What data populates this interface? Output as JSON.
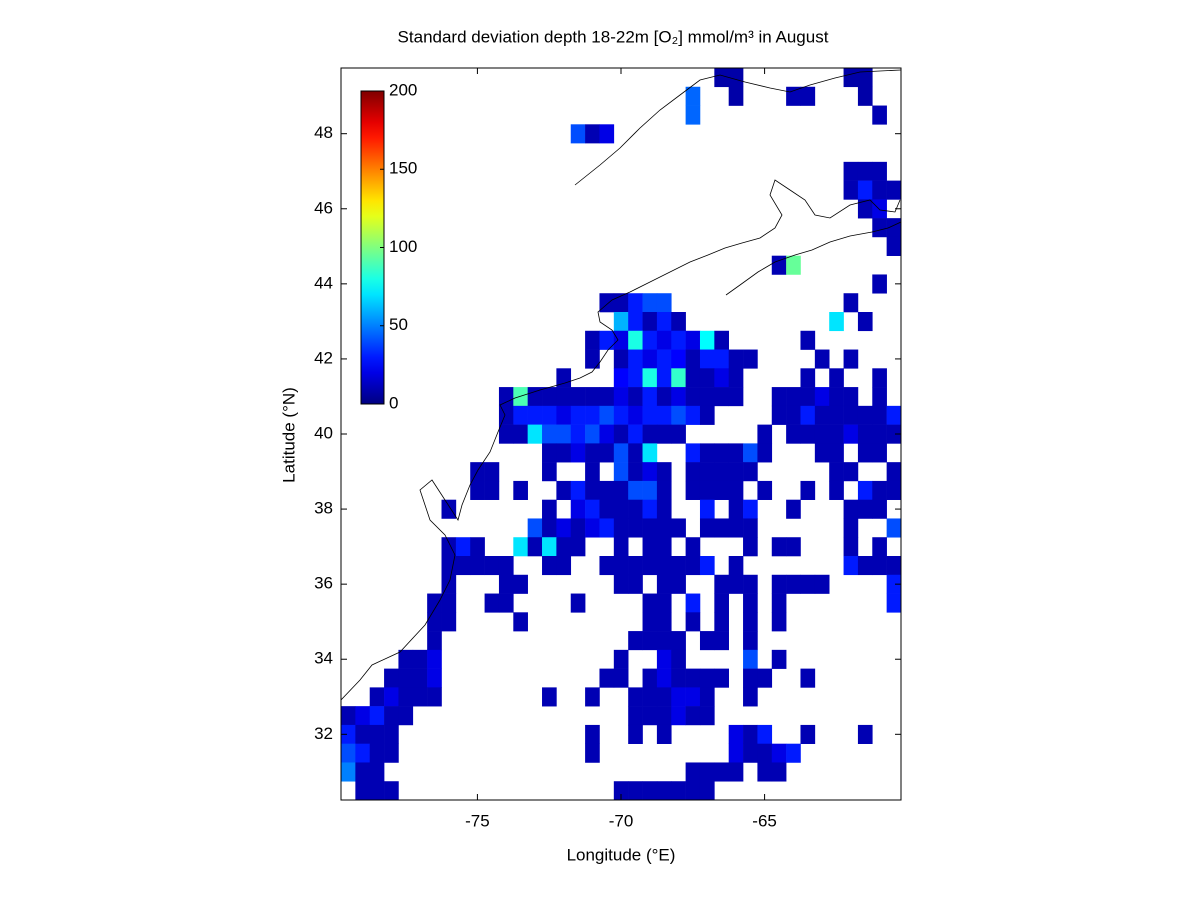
{
  "chart_data": {
    "type": "heatmap",
    "title": "Standard deviation depth 18-22m [O₂] mmol/m³ in August",
    "x_label": "Longitude (°E)",
    "y_label": "Latitude (°N)",
    "xlim": [
      -79.75,
      -60.25
    ],
    "ylim": [
      30.25,
      49.75
    ],
    "xticks": [
      -75,
      -70,
      -65
    ],
    "yticks": [
      32,
      34,
      36,
      38,
      40,
      42,
      44,
      46,
      48
    ],
    "colormap": "jet",
    "clim": [
      0,
      200
    ],
    "colorbar_ticks": [
      0,
      50,
      100,
      150,
      200
    ],
    "cell_width": 0.5,
    "cell_height": 0.5,
    "rows": [
      {
        "lat": 49.5,
        "lon": [
          -66.5,
          -66,
          -62,
          -61.5
        ],
        "values": [
          8,
          8,
          8,
          8
        ]
      },
      {
        "lat": 49,
        "lon": [
          -67.5,
          -66,
          -64,
          -63.5,
          -61.5
        ],
        "values": [
          45,
          8,
          10,
          10,
          8
        ]
      },
      {
        "lat": 48.5,
        "lon": [
          -67.5,
          -61
        ],
        "values": [
          45,
          10
        ]
      },
      {
        "lat": 48,
        "lon": [
          -71.5,
          -71,
          -70.5
        ],
        "values": [
          40,
          10,
          20
        ]
      },
      {
        "lat": 47,
        "lon": [
          -62,
          -61.5,
          -61
        ],
        "values": [
          10,
          10,
          10
        ]
      },
      {
        "lat": 46.5,
        "lon": [
          -62,
          -61.5,
          -61,
          -60.5
        ],
        "values": [
          10,
          30,
          10,
          10
        ]
      },
      {
        "lat": 46,
        "lon": [
          -61.5,
          -61
        ],
        "values": [
          10,
          20
        ]
      },
      {
        "lat": 45.5,
        "lon": [
          -61,
          -60.5
        ],
        "values": [
          10,
          10
        ]
      },
      {
        "lat": 45,
        "lon": [
          -60.5
        ],
        "values": [
          10
        ]
      },
      {
        "lat": 44.5,
        "lon": [
          -64.5,
          -64
        ],
        "values": [
          10,
          95
        ]
      },
      {
        "lat": 44,
        "lon": [
          -61
        ],
        "values": [
          10
        ]
      },
      {
        "lat": 43.5,
        "lon": [
          -70.5,
          -70,
          -69.5,
          -69,
          -68.5,
          -62
        ],
        "values": [
          10,
          10,
          30,
          40,
          40,
          10
        ]
      },
      {
        "lat": 43,
        "lon": [
          -70,
          -69.5,
          -69,
          -68.5,
          -68,
          -62.5,
          -61.5
        ],
        "values": [
          60,
          30,
          10,
          30,
          10,
          70,
          10
        ]
      },
      {
        "lat": 42.5,
        "lon": [
          -71,
          -70.5,
          -70,
          -69.5,
          -69,
          -68.5,
          -68,
          -67.5,
          -67,
          -66.5,
          -63.5
        ],
        "values": [
          10,
          30,
          20,
          80,
          30,
          20,
          30,
          20,
          75,
          10,
          10
        ]
      },
      {
        "lat": 42,
        "lon": [
          -71,
          -70,
          -69.5,
          -69,
          -68.5,
          -68,
          -67.5,
          -67,
          -66.5,
          -66,
          -65.5,
          -63,
          -62
        ],
        "values": [
          10,
          10,
          30,
          20,
          30,
          25,
          10,
          30,
          30,
          10,
          10,
          10,
          10
        ]
      },
      {
        "lat": 41.5,
        "lon": [
          -72,
          -70,
          -69.5,
          -69,
          -68.5,
          -68,
          -67.5,
          -67,
          -66.5,
          -66,
          -63.5,
          -62.5,
          -61
        ],
        "values": [
          10,
          25,
          30,
          80,
          30,
          85,
          10,
          10,
          20,
          10,
          10,
          10,
          10
        ]
      },
      {
        "lat": 41,
        "lon": [
          -74,
          -73.5,
          -73,
          -72.5,
          -72,
          -71.5,
          -71,
          -70.5,
          -70,
          -69.5,
          -69,
          -68.5,
          -68,
          -67.5,
          -67,
          -66.5,
          -66,
          -64.5,
          -64,
          -63.5,
          -63,
          -62.5,
          -62,
          -61
        ],
        "values": [
          10,
          90,
          10,
          10,
          10,
          10,
          10,
          10,
          20,
          10,
          30,
          10,
          20,
          10,
          10,
          10,
          10,
          10,
          10,
          10,
          20,
          10,
          10,
          10
        ]
      },
      {
        "lat": 40.5,
        "lon": [
          -74,
          -73.5,
          -73,
          -72.5,
          -72,
          -71.5,
          -71,
          -70.5,
          -70,
          -69.5,
          -69,
          -68.5,
          -68,
          -67.5,
          -67,
          -64.5,
          -64,
          -63.5,
          -63,
          -62.5,
          -62,
          -61.5,
          -61,
          -60.5
        ],
        "values": [
          10,
          30,
          30,
          30,
          20,
          30,
          30,
          40,
          30,
          20,
          30,
          30,
          40,
          30,
          10,
          10,
          10,
          30,
          10,
          10,
          10,
          10,
          10,
          30
        ]
      },
      {
        "lat": 40,
        "lon": [
          -74,
          -73.5,
          -73,
          -72.5,
          -72,
          -71.5,
          -71,
          -70.5,
          -70,
          -69.5,
          -69,
          -68.5,
          -68,
          -65,
          -64,
          -63.5,
          -63,
          -62.5,
          -62,
          -61.5,
          -61,
          -60.5
        ],
        "values": [
          10,
          10,
          70,
          40,
          40,
          30,
          40,
          20,
          10,
          30,
          10,
          10,
          10,
          10,
          10,
          10,
          10,
          10,
          20,
          10,
          10,
          10
        ]
      },
      {
        "lat": 39.5,
        "lon": [
          -72.5,
          -72,
          -71.5,
          -71,
          -70.5,
          -70,
          -69.5,
          -69,
          -67.5,
          -67,
          -66.5,
          -66,
          -65.5,
          -65,
          -63,
          -62.5,
          -61.5,
          -61
        ],
        "values": [
          10,
          10,
          20,
          10,
          10,
          40,
          10,
          70,
          30,
          10,
          10,
          10,
          40,
          10,
          10,
          10,
          10,
          10
        ]
      },
      {
        "lat": 39,
        "lon": [
          -75,
          -74.5,
          -72.5,
          -71,
          -70,
          -69.5,
          -69,
          -68.5,
          -67.5,
          -67,
          -66.5,
          -66,
          -65.5,
          -62.5,
          -62,
          -60.5
        ],
        "values": [
          10,
          10,
          10,
          10,
          40,
          10,
          20,
          10,
          10,
          10,
          10,
          10,
          10,
          10,
          10,
          10
        ]
      },
      {
        "lat": 38.5,
        "lon": [
          -75,
          -74.5,
          -73.5,
          -72,
          -71.5,
          -71,
          -70.5,
          -70,
          -69.5,
          -69,
          -68.5,
          -67.5,
          -67,
          -66.5,
          -66,
          -65,
          -63.5,
          -62.5,
          -61.5,
          -61,
          -60.5
        ],
        "values": [
          10,
          10,
          10,
          10,
          30,
          10,
          10,
          10,
          40,
          40,
          10,
          10,
          10,
          10,
          10,
          10,
          10,
          10,
          30,
          10,
          10
        ]
      },
      {
        "lat": 38,
        "lon": [
          -76,
          -72.5,
          -71.5,
          -71,
          -70.5,
          -70,
          -69.5,
          -69,
          -68.5,
          -67,
          -66,
          -65.5,
          -64,
          -62,
          -61.5,
          -61
        ],
        "values": [
          10,
          10,
          20,
          30,
          10,
          10,
          10,
          30,
          10,
          30,
          10,
          30,
          10,
          10,
          10,
          10
        ]
      },
      {
        "lat": 37.5,
        "lon": [
          -73,
          -72.5,
          -72,
          -71.5,
          -71,
          -70.5,
          -70,
          -69.5,
          -69,
          -68.5,
          -68,
          -67,
          -66.5,
          -66,
          -65.5,
          -62,
          -60.5
        ],
        "values": [
          40,
          10,
          20,
          10,
          20,
          30,
          10,
          10,
          10,
          10,
          10,
          10,
          10,
          10,
          10,
          10,
          40
        ]
      },
      {
        "lat": 37,
        "lon": [
          -76,
          -75.5,
          -75,
          -73.5,
          -73,
          -72.5,
          -72,
          -71.5,
          -70,
          -69,
          -68.5,
          -67.5,
          -65.5,
          -64.5,
          -64,
          -62,
          -61
        ],
        "values": [
          10,
          30,
          10,
          70,
          10,
          70,
          10,
          10,
          10,
          10,
          10,
          10,
          10,
          10,
          10,
          10,
          10
        ]
      },
      {
        "lat": 36.5,
        "lon": [
          -76,
          -75.5,
          -75,
          -74.5,
          -74,
          -72.5,
          -72,
          -70.5,
          -70,
          -69.5,
          -69,
          -68.5,
          -68,
          -67.5,
          -67,
          -66,
          -62,
          -61.5,
          -61,
          -60.5
        ],
        "values": [
          10,
          10,
          10,
          10,
          10,
          10,
          10,
          10,
          10,
          10,
          10,
          10,
          10,
          10,
          30,
          10,
          30,
          10,
          10,
          10
        ]
      },
      {
        "lat": 36,
        "lon": [
          -76,
          -74,
          -73.5,
          -70,
          -69.5,
          -68.5,
          -68,
          -66.5,
          -66,
          -65.5,
          -64.5,
          -64,
          -63.5,
          -63,
          -60.5
        ],
        "values": [
          10,
          10,
          10,
          10,
          10,
          10,
          10,
          10,
          10,
          10,
          10,
          10,
          10,
          10,
          30
        ]
      },
      {
        "lat": 35.5,
        "lon": [
          -76.5,
          -76,
          -74.5,
          -74,
          -71.5,
          -69,
          -68.5,
          -67.5,
          -66.5,
          -65.5,
          -64.5,
          -60.5
        ],
        "values": [
          10,
          10,
          10,
          10,
          10,
          10,
          10,
          30,
          10,
          10,
          10,
          30
        ]
      },
      {
        "lat": 35,
        "lon": [
          -76.5,
          -76,
          -73.5,
          -69,
          -68.5,
          -67.5,
          -66.5,
          -65.5,
          -64.5
        ],
        "values": [
          10,
          10,
          10,
          10,
          10,
          10,
          10,
          10,
          10
        ]
      },
      {
        "lat": 34.5,
        "lon": [
          -76.5,
          -69.5,
          -69,
          -68.5,
          -68,
          -67,
          -66.5,
          -65.5
        ],
        "values": [
          10,
          10,
          10,
          10,
          10,
          10,
          10,
          10
        ]
      },
      {
        "lat": 34,
        "lon": [
          -77.5,
          -77,
          -76.5,
          -70,
          -68.5,
          -68,
          -65.5,
          -64.5
        ],
        "values": [
          10,
          10,
          20,
          10,
          20,
          10,
          40,
          10
        ]
      },
      {
        "lat": 33.5,
        "lon": [
          -78,
          -77.5,
          -77,
          -76.5,
          -70.5,
          -70,
          -69,
          -68.5,
          -68,
          -67.5,
          -67,
          -66.5,
          -65.5,
          -65,
          -63.5
        ],
        "values": [
          10,
          10,
          10,
          20,
          10,
          10,
          10,
          20,
          10,
          10,
          10,
          10,
          10,
          10,
          10
        ]
      },
      {
        "lat": 33,
        "lon": [
          -78.5,
          -78,
          -77.5,
          -77,
          -76.5,
          -72.5,
          -71,
          -69.5,
          -69,
          -68.5,
          -68,
          -67.5,
          -67,
          -65.5
        ],
        "values": [
          10,
          20,
          10,
          10,
          10,
          10,
          10,
          10,
          10,
          10,
          20,
          20,
          10,
          10
        ]
      },
      {
        "lat": 32.5,
        "lon": [
          -79.5,
          -79,
          -78.5,
          -78,
          -77.5,
          -69.5,
          -69,
          -68.5,
          -68,
          -67.5,
          -67
        ],
        "values": [
          10,
          20,
          30,
          10,
          10,
          10,
          10,
          10,
          20,
          10,
          10
        ]
      },
      {
        "lat": 32,
        "lon": [
          -79.5,
          -79,
          -78.5,
          -78,
          -71,
          -69.5,
          -68.5,
          -66,
          -65.5,
          -65,
          -63.5,
          -61.5
        ],
        "values": [
          30,
          10,
          10,
          10,
          10,
          10,
          10,
          20,
          10,
          30,
          10,
          10
        ]
      },
      {
        "lat": 31.5,
        "lon": [
          -79.5,
          -79,
          -78.5,
          -78,
          -71,
          -66,
          -65.5,
          -65,
          -64.5,
          -64
        ],
        "values": [
          40,
          30,
          10,
          10,
          10,
          20,
          10,
          10,
          20,
          30
        ]
      },
      {
        "lat": 31,
        "lon": [
          -79.5,
          -79,
          -78.5,
          -67.5,
          -67,
          -66.5,
          -66,
          -65,
          -64.5
        ],
        "values": [
          50,
          10,
          10,
          10,
          10,
          10,
          10,
          10,
          10
        ]
      },
      {
        "lat": 30.5,
        "lon": [
          -79,
          -78.5,
          -78,
          -70,
          -69.5,
          -69,
          -68.5,
          -68,
          -67.5,
          -67
        ],
        "values": [
          10,
          10,
          10,
          10,
          10,
          10,
          10,
          10,
          10,
          10
        ]
      }
    ]
  }
}
